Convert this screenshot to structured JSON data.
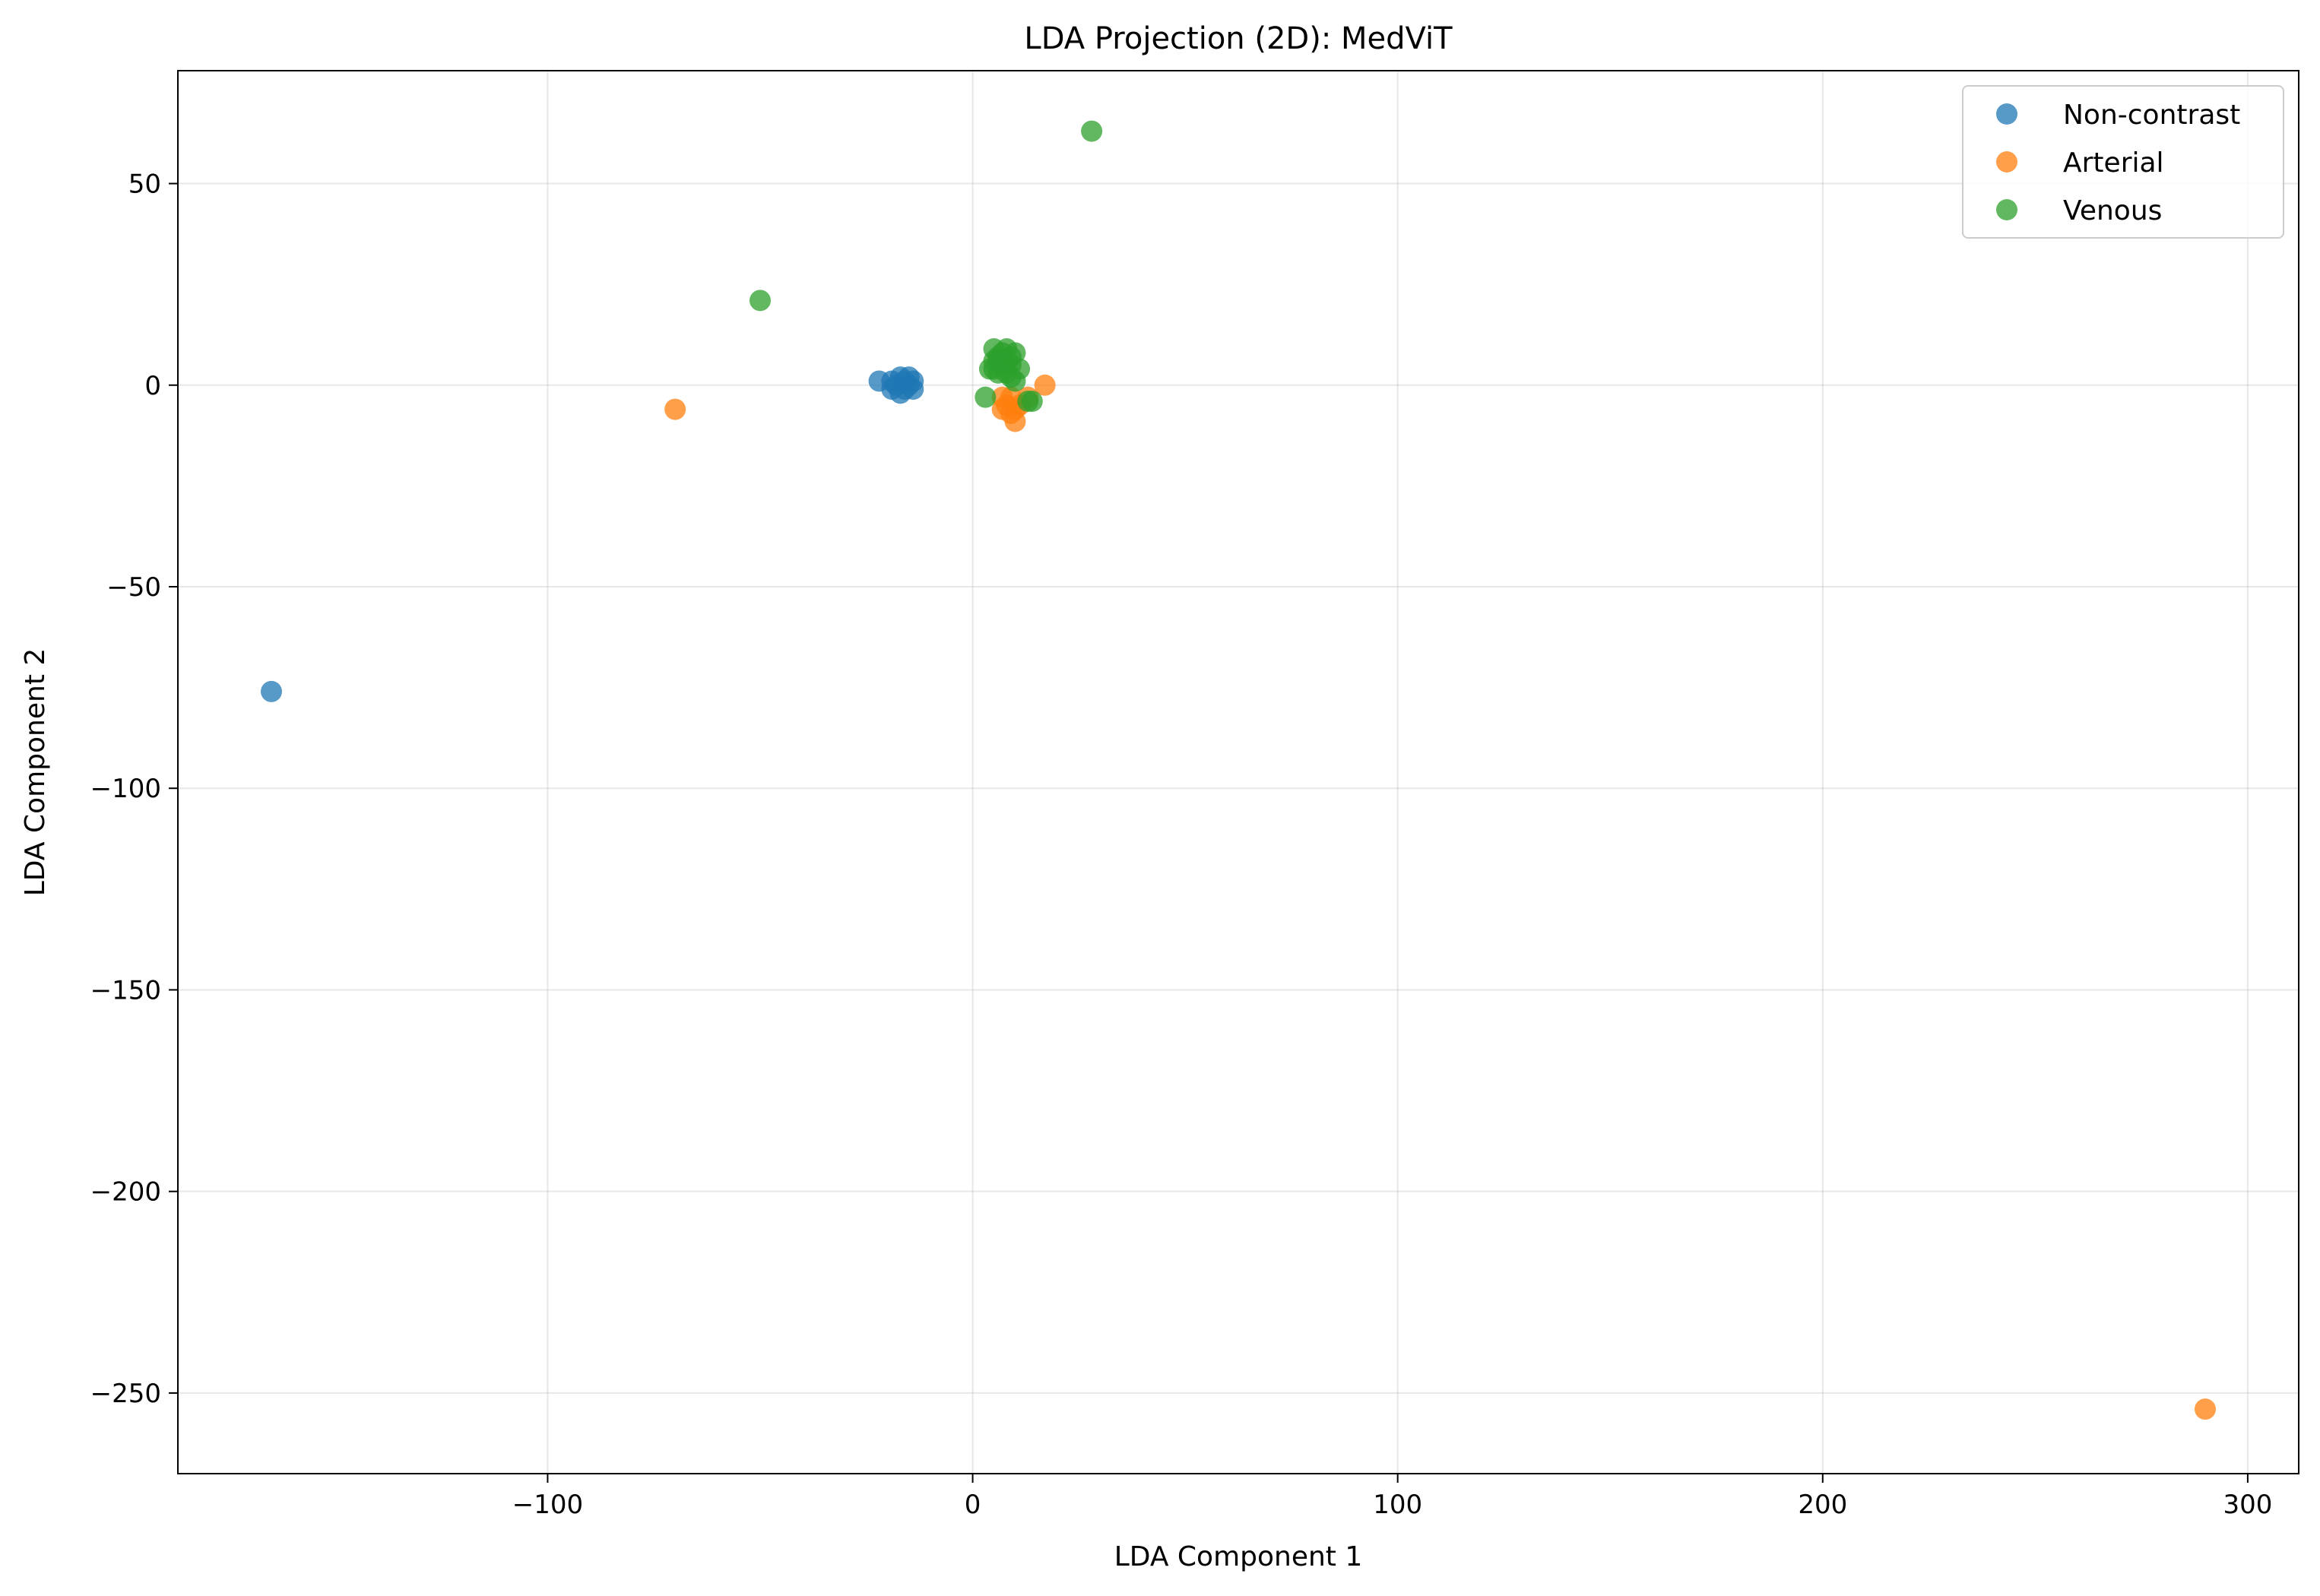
{
  "chart_data": {
    "type": "scatter",
    "title": "LDA Projection (2D): MedViT",
    "xlabel": "LDA Component 1",
    "ylabel": "LDA Component 2",
    "xlim": [
      -187,
      312
    ],
    "ylim": [
      -270,
      78
    ],
    "xticks": [
      -100,
      0,
      100,
      200,
      300
    ],
    "xtick_labels": [
      "−100",
      "0",
      "100",
      "200",
      "300"
    ],
    "yticks": [
      50,
      0,
      -50,
      -100,
      -150,
      -200,
      -250
    ],
    "ytick_labels": [
      "50",
      "0",
      "−50",
      "−100",
      "−150",
      "−200",
      "−250"
    ],
    "grid": true,
    "legend_position": "top-right",
    "series": [
      {
        "name": "Non-contrast",
        "color": "#1f77b4",
        "points": [
          [
            -165,
            -76
          ],
          [
            -22,
            1
          ],
          [
            -19,
            -1
          ],
          [
            -18,
            0
          ],
          [
            -17,
            2
          ],
          [
            -16,
            -1
          ],
          [
            -16,
            1
          ],
          [
            -15,
            0
          ],
          [
            -15,
            2
          ],
          [
            -14,
            -1
          ],
          [
            -14,
            1
          ],
          [
            -17,
            -2
          ],
          [
            -19,
            1
          ]
        ]
      },
      {
        "name": "Arterial",
        "color": "#ff7f0e",
        "points": [
          [
            -70,
            -6
          ],
          [
            7,
            -6
          ],
          [
            8,
            -5
          ],
          [
            9,
            -7
          ],
          [
            10,
            -9
          ],
          [
            11,
            -5
          ],
          [
            13,
            -3
          ],
          [
            17,
            0
          ],
          [
            7,
            -3
          ],
          [
            9,
            -3
          ],
          [
            10,
            -6
          ],
          [
            290,
            -254
          ]
        ]
      },
      {
        "name": "Venous",
        "color": "#2ca02c",
        "points": [
          [
            28,
            63
          ],
          [
            -50,
            21
          ],
          [
            5,
            9
          ],
          [
            6,
            7
          ],
          [
            7,
            8
          ],
          [
            8,
            6
          ],
          [
            9,
            5
          ],
          [
            10,
            8
          ],
          [
            11,
            4
          ],
          [
            5,
            4
          ],
          [
            6,
            3
          ],
          [
            8,
            3
          ],
          [
            9,
            2
          ],
          [
            10,
            1
          ],
          [
            7,
            5
          ],
          [
            8,
            9
          ],
          [
            6,
            6
          ],
          [
            4,
            4
          ],
          [
            5,
            6
          ],
          [
            9,
            7
          ],
          [
            3,
            -3
          ],
          [
            13,
            -4
          ],
          [
            14,
            -4
          ]
        ]
      }
    ]
  }
}
